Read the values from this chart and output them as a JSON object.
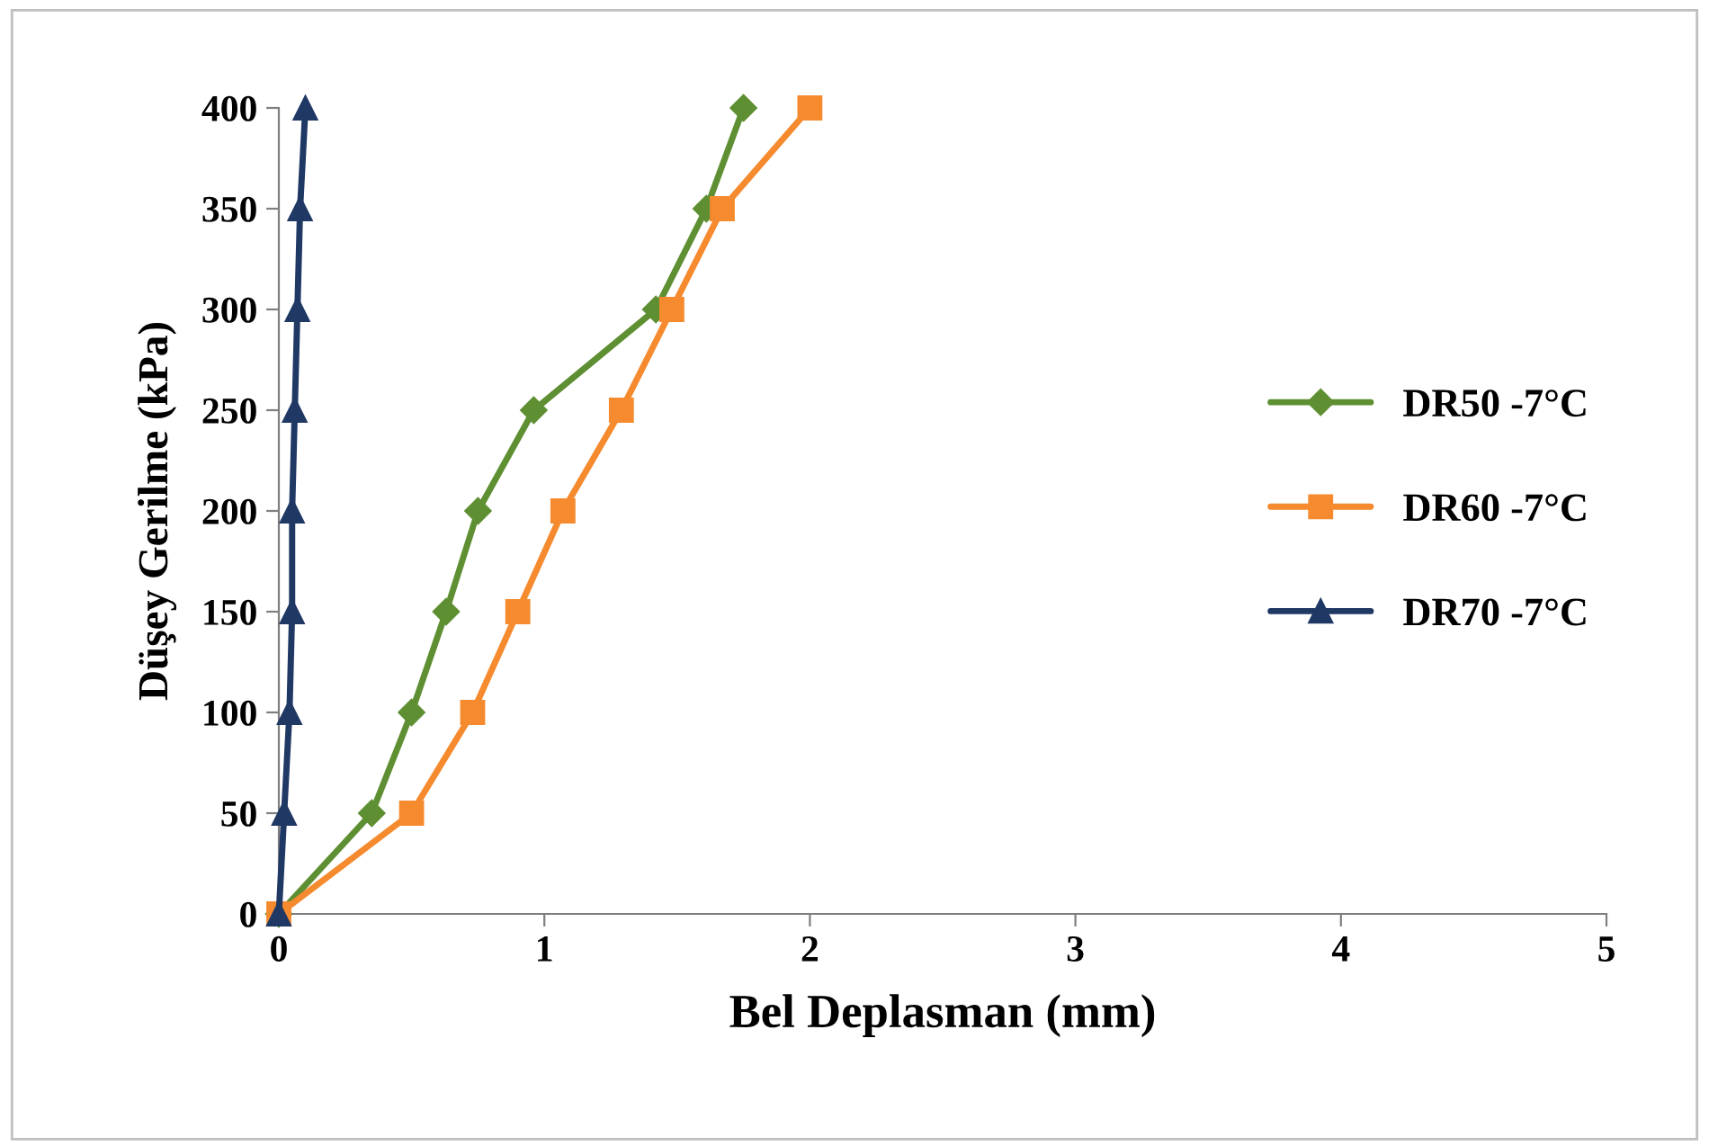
{
  "chart_data": {
    "type": "line",
    "xlabel": "Bel Deplasman (mm)",
    "ylabel": "Düşey Gerilme (kPa)",
    "xlim": [
      0,
      5
    ],
    "xticks": [
      0,
      1,
      2,
      3,
      4,
      5
    ],
    "ylim": [
      0,
      400
    ],
    "yticks": [
      0,
      50,
      100,
      150,
      200,
      250,
      300,
      350,
      400
    ],
    "grid": false,
    "legend": "right",
    "series": [
      {
        "name": "DR50 -7°C",
        "color": "#5e8f32",
        "marker": "diamond",
        "x": [
          0,
          0.35,
          0.5,
          0.63,
          0.75,
          0.96,
          1.42,
          1.61,
          1.75
        ],
        "values": [
          0,
          50,
          100,
          150,
          200,
          250,
          300,
          350,
          400
        ]
      },
      {
        "name": "DR60 -7°C",
        "color": "#f58a2e",
        "marker": "square",
        "x": [
          0,
          0.5,
          0.73,
          0.9,
          1.07,
          1.29,
          1.48,
          1.67,
          2.0
        ],
        "values": [
          0,
          50,
          100,
          150,
          200,
          250,
          300,
          350,
          400
        ]
      },
      {
        "name": "DR70 -7°C",
        "color": "#1f3864",
        "marker": "triangle",
        "x": [
          0,
          0.02,
          0.04,
          0.05,
          0.05,
          0.06,
          0.07,
          0.08,
          0.1
        ],
        "values": [
          0,
          50,
          100,
          150,
          200,
          250,
          300,
          350,
          400
        ]
      }
    ]
  }
}
